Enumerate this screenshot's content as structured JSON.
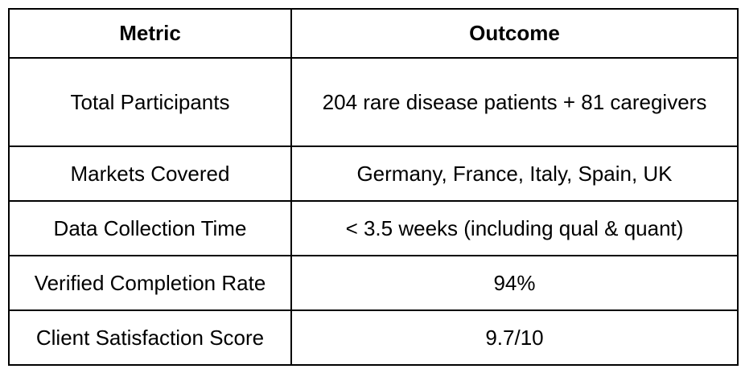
{
  "table": {
    "headers": [
      "Metric",
      "Outcome"
    ],
    "rows": [
      {
        "metric": "Total Participants",
        "outcome": "204 rare disease patients + 81 caregivers"
      },
      {
        "metric": "Markets Covered",
        "outcome": "Germany, France, Italy, Spain, UK"
      },
      {
        "metric": "Data Collection Time",
        "outcome": "< 3.5 weeks (including qual & quant)"
      },
      {
        "metric": "Verified Completion Rate",
        "outcome": "94%"
      },
      {
        "metric": "Client Satisfaction Score",
        "outcome": "9.7/10"
      }
    ]
  }
}
